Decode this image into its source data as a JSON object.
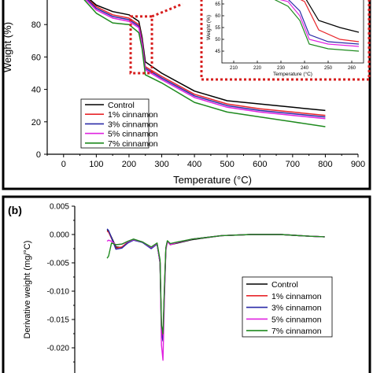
{
  "colors": {
    "control": "#000000",
    "c1": "#e8262b",
    "c3": "#2b2ba8",
    "c5": "#e022e0",
    "c7": "#1e8a1e",
    "highlight": "#d71e1e"
  },
  "chart_data": [
    {
      "type": "line",
      "panel": "a",
      "xlabel": "Temperature (°C)",
      "ylabel": "Weight (%)",
      "xlim": [
        -50,
        900
      ],
      "ylim": [
        0,
        100
      ],
      "xticks": [
        "0",
        "100",
        "200",
        "300",
        "400",
        "500",
        "600",
        "700",
        "800",
        "900"
      ],
      "yticks": [
        "0",
        "20",
        "40",
        "60",
        "80"
      ],
      "legend_position": "bottom-left",
      "series": [
        {
          "name": "Control",
          "x": [
            60,
            100,
            150,
            200,
            230,
            240,
            250,
            300,
            400,
            500,
            600,
            700,
            800
          ],
          "y": [
            99,
            92,
            88,
            86,
            82,
            72,
            57,
            50,
            39,
            33,
            31,
            29,
            27
          ]
        },
        {
          "name": "1% cinnamon",
          "x": [
            60,
            100,
            150,
            200,
            230,
            240,
            250,
            300,
            400,
            500,
            600,
            700,
            800
          ],
          "y": [
            98,
            91,
            86,
            84,
            80,
            70,
            54,
            48,
            37,
            31,
            28,
            26,
            24
          ]
        },
        {
          "name": "3% cinnamon",
          "x": [
            60,
            100,
            150,
            200,
            230,
            240,
            250,
            300,
            400,
            500,
            600,
            700,
            800
          ],
          "y": [
            98,
            90,
            85,
            83,
            79,
            69,
            53,
            47,
            36,
            30,
            27,
            25,
            23
          ]
        },
        {
          "name": "5% cinnamon",
          "x": [
            60,
            100,
            150,
            200,
            230,
            240,
            250,
            300,
            400,
            500,
            600,
            700,
            800
          ],
          "y": [
            97,
            89,
            84,
            82,
            78,
            68,
            52,
            46,
            35,
            29,
            26,
            24,
            22
          ]
        },
        {
          "name": "7% cinnamon",
          "x": [
            60,
            100,
            150,
            200,
            230,
            240,
            250,
            300,
            400,
            500,
            600,
            700,
            800
          ],
          "y": [
            96,
            87,
            81,
            80,
            75,
            65,
            49,
            44,
            32,
            26,
            23,
            20,
            17
          ]
        }
      ],
      "inset": {
        "xlabel": "Temperature (°C)",
        "ylabel": "Weight (%)",
        "xlim": [
          205,
          265
        ],
        "ylim": [
          40,
          70
        ],
        "xticks": [
          "210",
          "220",
          "230",
          "240",
          "250",
          "260"
        ],
        "yticks": [
          "45",
          "50",
          "55",
          "60",
          "65",
          "70"
        ],
        "series": [
          {
            "name": "Control",
            "x": [
              225,
              236,
              240,
              246,
              255,
              263
            ],
            "y": [
              72,
              70,
              68,
              58,
              55,
              53
            ]
          },
          {
            "name": "1% cinnamon",
            "x": [
              225,
              236,
              240,
              246,
              255,
              263
            ],
            "y": [
              70,
              68,
              66,
              54,
              50,
              49
            ]
          },
          {
            "name": "3% cinnamon",
            "x": [
              225,
              233,
              238,
              242,
              250,
              263
            ],
            "y": [
              69,
              67,
              62,
              52,
              49,
              48
            ]
          },
          {
            "name": "5% cinnamon",
            "x": [
              225,
              233,
              238,
              242,
              250,
              263
            ],
            "y": [
              68,
              66,
              60,
              50,
              48,
              47
            ]
          },
          {
            "name": "7% cinnamon",
            "x": [
              225,
              233,
              238,
              242,
              250,
              263
            ],
            "y": [
              68,
              64,
              58,
              48,
              46,
              45
            ]
          }
        ]
      }
    },
    {
      "type": "line",
      "panel": "b",
      "label": "(b)",
      "xlabel": "",
      "ylabel": "Derivative weight (mg/°C)",
      "xlim": [
        -50,
        900
      ],
      "ylim": [
        -0.025,
        0.005
      ],
      "yticks": [
        "0.005",
        "0.000",
        "-0.005",
        "-0.010",
        "-0.015",
        "-0.020"
      ],
      "legend_position": "bottom-right",
      "series": [
        {
          "name": "Control",
          "x": [
            60,
            65,
            75,
            90,
            110,
            130,
            150,
            180,
            210,
            230,
            240,
            245,
            250,
            255,
            260,
            265,
            275,
            300,
            350,
            450,
            550,
            650,
            750,
            800
          ],
          "y": [
            0.0008,
            0.0006,
            -0.0005,
            -0.0022,
            -0.0023,
            -0.0015,
            -0.0009,
            -0.0013,
            -0.0024,
            -0.0017,
            -0.005,
            -0.017,
            -0.0185,
            -0.01,
            -0.0025,
            -0.0012,
            -0.0018,
            -0.0015,
            -0.0009,
            -0.0002,
            0.0,
            0.0,
            -0.0003,
            -0.0004
          ]
        },
        {
          "name": "1% cinnamon",
          "x": [
            60,
            65,
            75,
            90,
            110,
            130,
            150,
            180,
            210,
            230,
            240,
            245,
            250,
            255,
            260,
            265,
            275,
            300,
            350,
            450,
            550,
            650,
            750,
            800
          ],
          "y": [
            0.0006,
            0.0004,
            -0.0007,
            -0.0024,
            -0.0022,
            -0.0014,
            -0.0009,
            -0.0013,
            -0.0024,
            -0.0016,
            -0.0048,
            -0.0168,
            -0.0182,
            -0.0095,
            -0.0024,
            -0.0012,
            -0.0018,
            -0.0014,
            -0.0008,
            -0.0002,
            0.0,
            0.0,
            -0.0003,
            -0.0004
          ]
        },
        {
          "name": "3% cinnamon",
          "x": [
            60,
            65,
            75,
            90,
            110,
            130,
            150,
            180,
            210,
            230,
            240,
            245,
            250,
            255,
            260,
            265,
            275,
            300,
            350,
            450,
            550,
            650,
            750,
            800
          ],
          "y": [
            0.001,
            0.0007,
            -0.0006,
            -0.0026,
            -0.0024,
            -0.0015,
            -0.001,
            -0.0014,
            -0.0025,
            -0.0017,
            -0.005,
            -0.0175,
            -0.0188,
            -0.0098,
            -0.0025,
            -0.0012,
            -0.0017,
            -0.0014,
            -0.0008,
            -0.0002,
            0.0,
            0.0,
            -0.0003,
            -0.0004
          ]
        },
        {
          "name": "5% cinnamon",
          "x": [
            60,
            65,
            75,
            90,
            110,
            130,
            150,
            180,
            210,
            230,
            240,
            245,
            250,
            255,
            260,
            265,
            275,
            300,
            350,
            450,
            550,
            650,
            750,
            800
          ],
          "y": [
            -0.0012,
            -0.001,
            -0.0012,
            -0.0018,
            -0.0017,
            -0.0013,
            -0.0009,
            -0.0013,
            -0.0023,
            -0.0016,
            -0.005,
            -0.0195,
            -0.0222,
            -0.011,
            -0.0028,
            -0.0013,
            -0.0018,
            -0.0014,
            -0.0008,
            -0.0002,
            0.0,
            0.0,
            -0.0003,
            -0.0004
          ]
        },
        {
          "name": "7% cinnamon",
          "x": [
            60,
            65,
            75,
            90,
            110,
            130,
            150,
            180,
            210,
            230,
            240,
            245,
            250,
            255,
            260,
            265,
            275,
            300,
            350,
            450,
            550,
            650,
            750,
            800
          ],
          "y": [
            -0.0042,
            -0.0038,
            -0.0015,
            -0.0018,
            -0.0017,
            -0.0012,
            -0.0008,
            -0.0013,
            -0.0022,
            -0.0015,
            -0.0045,
            -0.016,
            -0.0175,
            -0.009,
            -0.0023,
            -0.0011,
            -0.0016,
            -0.0013,
            -0.0008,
            -0.0002,
            0.0,
            0.0,
            -0.0003,
            -0.0004
          ]
        }
      ]
    }
  ]
}
